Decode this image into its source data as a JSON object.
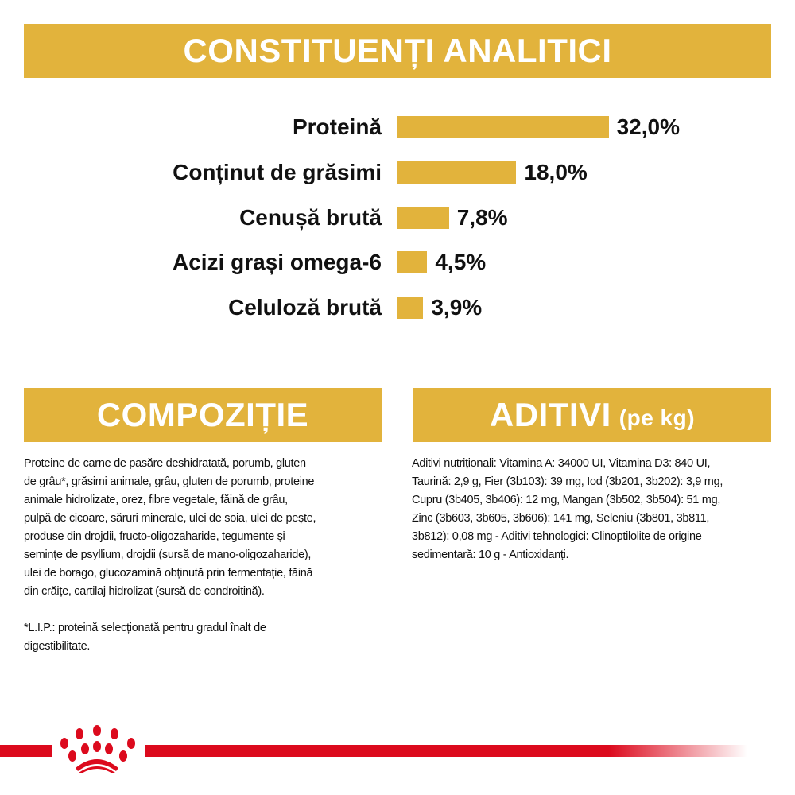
{
  "headers": {
    "analytic": "CONSTITUENȚI ANALITICI",
    "composition": "COMPOZIȚIE",
    "additives": "ADITIVI",
    "additives_unit": "(pe kg)"
  },
  "chart_data": {
    "type": "bar",
    "orientation": "horizontal",
    "categories": [
      "Proteină",
      "Conținut de grăsimi",
      "Cenușă brută",
      "Acizi grași omega-6",
      "Celuloză brută"
    ],
    "values": [
      32.0,
      18.0,
      7.8,
      4.5,
      3.9
    ],
    "value_labels": [
      "32,0%",
      "18,0%",
      "7,8%",
      "4,5%",
      "3,9%"
    ],
    "unit": "%",
    "bar_color": "#e2b33c",
    "grid": false
  },
  "composition_lines": [
    "Proteine de carne de pasăre deshidratată, porumb, gluten",
    "de grâu*, grăsimi animale, grâu, gluten de porumb, proteine",
    "animale hidrolizate, orez, fibre vegetale, făină de grâu,",
    "pulpă de cicoare, săruri minerale, ulei de soia, ulei de pește,",
    "produse din drojdii, fructo-oligozaharide, tegumente și",
    "semințe de psyllium, drojdii (sursă de mano-oligozaharide),",
    "ulei de borago, glucozamină obținută prin fermentație, făină",
    "din crăițe, cartilaj hidrolizat (sursă de condroitină).",
    "",
    "*L.I.P.: proteină selecționată pentru gradul înalt de",
    "digestibilitate."
  ],
  "additives_lines": [
    "Aditivi nutriționali: Vitamina A: 34000 UI, Vitamina D3: 840 UI,",
    "Taurină: 2,9 g, Fier (3b103): 39 mg, Iod (3b201, 3b202): 3,9 mg,",
    "Cupru (3b405, 3b406): 12 mg, Mangan (3b502, 3b504): 51 mg,",
    "Zinc (3b603, 3b605, 3b606): 141 mg, Seleniu (3b801, 3b811,",
    "3b812): 0,08 mg - Aditivi tehnologici: Clinoptilolite de origine",
    "sedimentară: 10 g - Antioxidanți."
  ],
  "colors": {
    "accent": "#e2b33c",
    "brand_red": "#dc0a1d"
  },
  "logo": "royal-crown-paw-icon"
}
